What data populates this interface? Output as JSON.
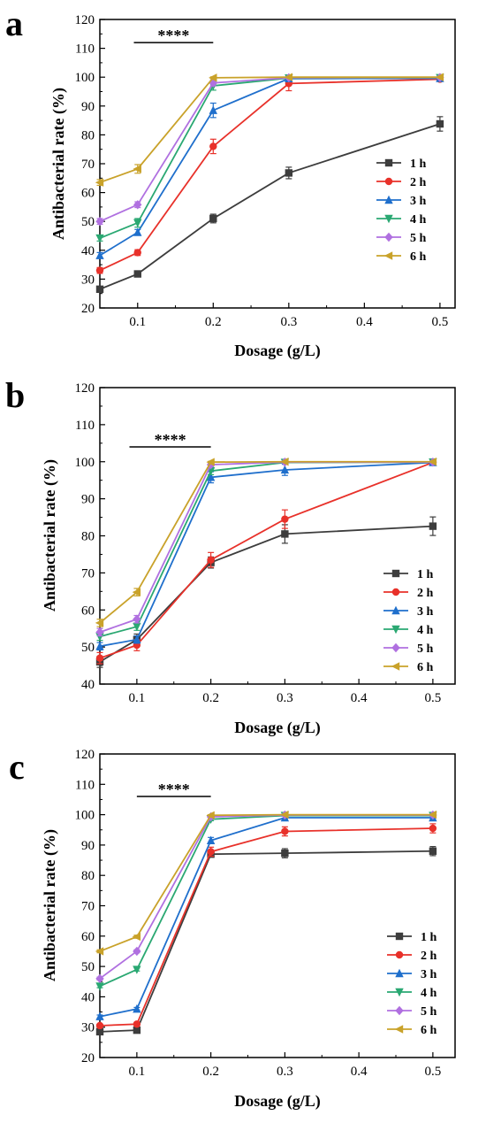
{
  "chart_data": [
    {
      "type": "line",
      "panel_label": "a",
      "xlabel": "Dosage (g/L)",
      "ylabel": "Antibacterial rate (%)",
      "xlim": [
        0.05,
        0.52
      ],
      "ylim": [
        20,
        120
      ],
      "xticks": [
        0.1,
        0.2,
        0.3,
        0.4,
        0.5
      ],
      "yticks": [
        20,
        30,
        40,
        50,
        60,
        70,
        80,
        90,
        100,
        110,
        120
      ],
      "x": [
        0.05,
        0.1,
        0.2,
        0.3,
        0.5
      ],
      "annotation": {
        "text": "****",
        "x_start": 0.095,
        "x_end": 0.2,
        "y": 112
      },
      "legend_position": "right",
      "series": [
        {
          "name": "1 h",
          "color": "#3d3d3d",
          "marker": "square",
          "values": [
            26.5,
            31.8,
            51.0,
            66.8,
            83.8
          ],
          "errors": [
            0.8,
            0.8,
            1.5,
            2.0,
            2.5
          ]
        },
        {
          "name": "2 h",
          "color": "#e8312a",
          "marker": "circle",
          "values": [
            33.0,
            39.2,
            76.0,
            97.8,
            99.3
          ],
          "errors": [
            1.0,
            1.0,
            2.5,
            2.5,
            0.5
          ]
        },
        {
          "name": "3 h",
          "color": "#1f6fcc",
          "marker": "triangle-up",
          "values": [
            38.2,
            46.2,
            88.5,
            99.5,
            99.6
          ],
          "errors": [
            1.0,
            1.0,
            2.5,
            0.5,
            0.3
          ]
        },
        {
          "name": "4 h",
          "color": "#2aa872",
          "marker": "triangle-down",
          "values": [
            44.2,
            49.5,
            97.0,
            99.7,
            99.8
          ],
          "errors": [
            1.0,
            1.5,
            1.5,
            0.3,
            0.2
          ]
        },
        {
          "name": "5 h",
          "color": "#b070e0",
          "marker": "diamond",
          "values": [
            50.0,
            55.8,
            98.0,
            99.8,
            99.9
          ],
          "errors": [
            1.0,
            1.0,
            1.0,
            0.2,
            0.1
          ]
        },
        {
          "name": "6 h",
          "color": "#c9a22a",
          "marker": "triangle-left",
          "values": [
            63.5,
            68.2,
            99.8,
            100.0,
            100.0
          ],
          "errors": [
            1.0,
            1.5,
            0.3,
            0.1,
            0.1
          ]
        }
      ]
    },
    {
      "type": "line",
      "panel_label": "b",
      "xlabel": "Dosage (g/L)",
      "ylabel": "Antibacterial rate (%)",
      "xlim": [
        0.05,
        0.53
      ],
      "ylim": [
        40,
        120
      ],
      "xticks": [
        0.1,
        0.2,
        0.3,
        0.4,
        0.5
      ],
      "yticks": [
        40,
        50,
        60,
        70,
        80,
        90,
        100,
        110,
        120
      ],
      "x": [
        0.05,
        0.1,
        0.2,
        0.3,
        0.5
      ],
      "annotation": {
        "text": "****",
        "x_start": 0.09,
        "x_end": 0.2,
        "y": 104
      },
      "legend_position": "right",
      "series": [
        {
          "name": "1 h",
          "color": "#3d3d3d",
          "marker": "square",
          "values": [
            46.0,
            52.0,
            72.8,
            80.5,
            82.6
          ],
          "errors": [
            1.5,
            1.5,
            1.5,
            2.5,
            2.5
          ]
        },
        {
          "name": "2 h",
          "color": "#e8312a",
          "marker": "circle",
          "values": [
            47.0,
            50.5,
            73.5,
            84.5,
            99.8
          ],
          "errors": [
            1.5,
            1.5,
            2.0,
            2.5,
            0.3
          ]
        },
        {
          "name": "3 h",
          "color": "#1f6fcc",
          "marker": "triangle-up",
          "values": [
            50.2,
            52.0,
            95.8,
            97.8,
            99.8
          ],
          "errors": [
            1.0,
            1.0,
            1.5,
            1.5,
            0.3
          ]
        },
        {
          "name": "4 h",
          "color": "#2aa872",
          "marker": "triangle-down",
          "values": [
            52.8,
            55.5,
            97.5,
            99.8,
            99.9
          ],
          "errors": [
            1.0,
            1.0,
            1.0,
            0.2,
            0.1
          ]
        },
        {
          "name": "5 h",
          "color": "#b070e0",
          "marker": "diamond",
          "values": [
            54.0,
            57.5,
            99.2,
            99.9,
            99.9
          ],
          "errors": [
            1.0,
            1.0,
            0.5,
            0.1,
            0.1
          ]
        },
        {
          "name": "6 h",
          "color": "#c9a22a",
          "marker": "triangle-left",
          "values": [
            56.5,
            64.8,
            99.9,
            100.0,
            100.0
          ],
          "errors": [
            1.0,
            1.0,
            0.2,
            0.1,
            0.1
          ]
        }
      ]
    },
    {
      "type": "line",
      "panel_label": "c",
      "xlabel": "Dosage (g/L)",
      "ylabel": "Antibacterial rate (%)",
      "xlim": [
        0.05,
        0.53
      ],
      "ylim": [
        20,
        120
      ],
      "xticks": [
        0.1,
        0.2,
        0.3,
        0.4,
        0.5
      ],
      "yticks": [
        20,
        30,
        40,
        50,
        60,
        70,
        80,
        90,
        100,
        110,
        120
      ],
      "x": [
        0.05,
        0.1,
        0.2,
        0.3,
        0.5
      ],
      "annotation": {
        "text": "****",
        "x_start": 0.1,
        "x_end": 0.2,
        "y": 106
      },
      "legend_position": "right",
      "series": [
        {
          "name": "1 h",
          "color": "#3d3d3d",
          "marker": "square",
          "values": [
            28.5,
            29.0,
            87.0,
            87.3,
            88.0
          ],
          "errors": [
            0.5,
            0.5,
            1.0,
            1.5,
            1.5
          ]
        },
        {
          "name": "2 h",
          "color": "#e8312a",
          "marker": "circle",
          "values": [
            30.5,
            31.0,
            87.8,
            94.5,
            95.5
          ],
          "errors": [
            0.5,
            0.5,
            1.5,
            1.5,
            1.5
          ]
        },
        {
          "name": "3 h",
          "color": "#1f6fcc",
          "marker": "triangle-up",
          "values": [
            33.5,
            36.0,
            91.5,
            99.0,
            99.0
          ],
          "errors": [
            0.5,
            0.5,
            1.0,
            0.5,
            0.5
          ]
        },
        {
          "name": "4 h",
          "color": "#2aa872",
          "marker": "triangle-down",
          "values": [
            43.5,
            49.0,
            98.5,
            99.7,
            99.7
          ],
          "errors": [
            0.5,
            0.5,
            0.5,
            0.2,
            0.2
          ]
        },
        {
          "name": "5 h",
          "color": "#b070e0",
          "marker": "diamond",
          "values": [
            46.0,
            55.0,
            99.3,
            99.9,
            99.9
          ],
          "errors": [
            0.5,
            0.5,
            0.3,
            0.1,
            0.1
          ]
        },
        {
          "name": "6 h",
          "color": "#c9a22a",
          "marker": "triangle-left",
          "values": [
            55.0,
            59.8,
            99.8,
            100.0,
            100.0
          ],
          "errors": [
            0.5,
            0.5,
            0.2,
            0.1,
            0.1
          ]
        }
      ]
    }
  ]
}
